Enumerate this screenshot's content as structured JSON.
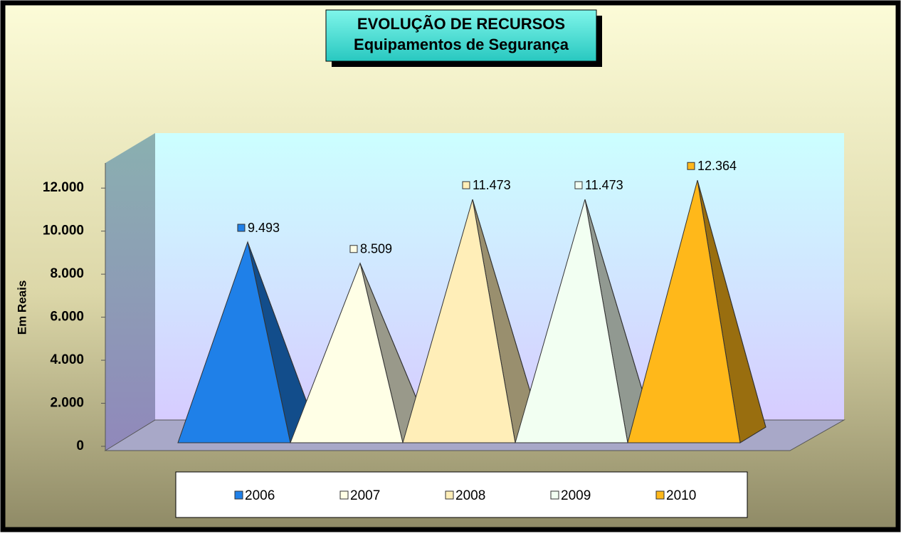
{
  "chart_data": {
    "type": "pyramid",
    "title": "EVOLUÇÃO DE RECURSOS",
    "subtitle": "Equipamentos de Segurança",
    "y_label": "Em Reais",
    "ylim": [
      0,
      13000
    ],
    "yticks": [
      0,
      {
        "value": 2000,
        "label": "2.000"
      },
      {
        "value": 4000,
        "label": "4.000"
      },
      {
        "value": 6000,
        "label": "6.000"
      },
      {
        "value": 8000,
        "label": "8.000"
      },
      {
        "value": 10000,
        "label": "10.000"
      },
      {
        "value": 12000,
        "label": "12.000"
      }
    ],
    "legend": "bottom",
    "series": [
      {
        "name": "2006",
        "color": "#1f80e8",
        "values": [
          9493
        ],
        "value_labels": [
          "9.493"
        ]
      },
      {
        "name": "2007",
        "color": "#ffffe6",
        "values": [
          8509
        ],
        "value_labels": [
          "8.509"
        ]
      },
      {
        "name": "2008",
        "color": "#ffeeb8",
        "values": [
          11473
        ],
        "value_labels": [
          "11.473"
        ]
      },
      {
        "name": "2009",
        "color": "#f2fff2",
        "values": [
          11473
        ],
        "value_labels": [
          "11.473"
        ]
      },
      {
        "name": "2010",
        "color": "#ffb81a",
        "values": [
          12364
        ],
        "value_labels": [
          "12.364"
        ]
      }
    ]
  }
}
